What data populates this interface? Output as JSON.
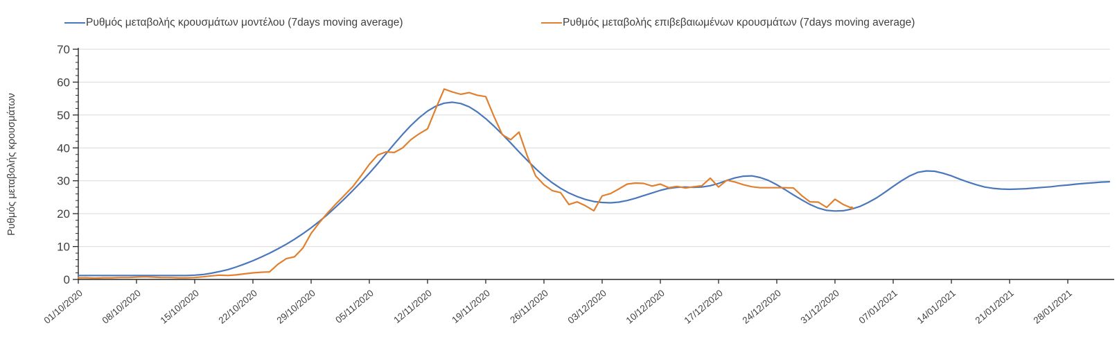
{
  "legend": {
    "model_label": "Ρυθμός μεταβολής κρουσμάτων μοντέλου (7days moving average)",
    "confirmed_label": "Ρυθμός μεταβολής επιβεβαιωμένων κρουσμάτων (7days moving average)"
  },
  "axes": {
    "y_title": "Ρυθμός μεταβολής κρουσμάτων"
  },
  "chart_data": {
    "type": "line",
    "title": "",
    "xlabel": "",
    "ylabel": "Ρυθμός μεταβολής κρουσμάτων",
    "ylim": [
      0,
      70
    ],
    "y_ticks": [
      0,
      10,
      20,
      30,
      40,
      50,
      60,
      70
    ],
    "y_minor_tick_step": 2,
    "grid": "horizontal",
    "legend_position": "top",
    "x_start_date": "01/10/2020",
    "x_step_days": 1,
    "x_tick_labels": [
      "01/10/2020",
      "08/10/2020",
      "15/10/2020",
      "22/10/2020",
      "29/10/2020",
      "05/11/2020",
      "12/11/2020",
      "19/11/2020",
      "26/11/2020",
      "03/12/2020",
      "10/12/2020",
      "17/12/2020",
      "24/12/2020",
      "31/12/2020",
      "07/01/2021",
      "14/01/2021",
      "21/01/2021",
      "28/01/2021"
    ],
    "x_tick_interval_days": 7,
    "colors": {
      "model": "#4a77bb",
      "confirmed": "#e0802f",
      "gridline": "#d9d9d9",
      "axis": "#262626",
      "text": "#3f3f3f"
    },
    "series": [
      {
        "name": "Ρυθμός μεταβολής κρουσμάτων μοντέλου (7days moving average)",
        "color": "#4a77bb",
        "start_date": "01/10/2020",
        "end_date": "02/02/2021",
        "values": [
          1.2,
          1.2,
          1.2,
          1.2,
          1.2,
          1.2,
          1.2,
          1.2,
          1.2,
          1.2,
          1.2,
          1.2,
          1.2,
          1.2,
          1.3,
          1.5,
          1.9,
          2.4,
          3.0,
          3.8,
          4.7,
          5.7,
          6.8,
          8.0,
          9.3,
          10.7,
          12.2,
          13.9,
          15.7,
          17.7,
          19.8,
          22.1,
          24.5,
          27.0,
          29.6,
          32.3,
          35.2,
          38.2,
          41.2,
          44.1,
          46.8,
          49.2,
          51.2,
          52.7,
          53.6,
          53.9,
          53.5,
          52.5,
          50.9,
          48.9,
          46.6,
          44.1,
          41.5,
          38.8,
          36.2,
          33.7,
          31.4,
          29.4,
          27.7,
          26.3,
          25.2,
          24.3,
          23.7,
          23.4,
          23.3,
          23.5,
          24.0,
          24.7,
          25.5,
          26.3,
          27.1,
          27.7,
          28.0,
          28.1,
          28.0,
          28.1,
          28.5,
          29.2,
          30.1,
          30.9,
          31.4,
          31.5,
          31.0,
          30.1,
          28.8,
          27.3,
          25.7,
          24.2,
          22.8,
          21.7,
          21.0,
          20.8,
          20.9,
          21.4,
          22.2,
          23.4,
          24.8,
          26.5,
          28.3,
          30.0,
          31.5,
          32.6,
          33.0,
          32.9,
          32.3,
          31.5,
          30.5,
          29.6,
          28.8,
          28.1,
          27.7,
          27.5,
          27.4,
          27.5,
          27.6,
          27.8,
          28.0,
          28.2,
          28.5,
          28.7,
          29.0,
          29.2,
          29.4,
          29.6,
          29.7
        ]
      },
      {
        "name": "Ρυθμός μεταβολής επιβεβαιωμένων κρουσμάτων (7days moving average)",
        "color": "#e0802f",
        "start_date": "01/10/2020",
        "end_date": "02/01/2021",
        "values": [
          0.5,
          0.5,
          0.4,
          0.5,
          0.5,
          0.6,
          0.6,
          0.7,
          0.8,
          0.7,
          0.6,
          0.6,
          0.5,
          0.5,
          0.6,
          0.8,
          1.1,
          1.3,
          1.2,
          1.4,
          1.7,
          2.0,
          2.2,
          2.3,
          4.6,
          6.3,
          6.9,
          9.5,
          14.0,
          17.3,
          20.3,
          23.0,
          25.6,
          28.2,
          31.5,
          35.0,
          37.8,
          38.8,
          38.6,
          40.0,
          42.5,
          44.3,
          45.8,
          52.0,
          57.9,
          57.0,
          56.3,
          56.8,
          56.0,
          55.6,
          49.5,
          44.0,
          42.5,
          44.8,
          37.5,
          31.5,
          28.8,
          27.0,
          26.4,
          22.8,
          23.6,
          22.4,
          20.9,
          25.4,
          26.1,
          27.5,
          29.0,
          29.3,
          29.2,
          28.4,
          29.0,
          27.9,
          28.3,
          27.8,
          28.2,
          28.5,
          30.8,
          28.1,
          30.2,
          29.6,
          28.8,
          28.2,
          27.9,
          27.9,
          27.9,
          27.9,
          27.8,
          25.5,
          23.6,
          23.5,
          21.9,
          24.4,
          22.8,
          21.7
        ]
      }
    ]
  }
}
